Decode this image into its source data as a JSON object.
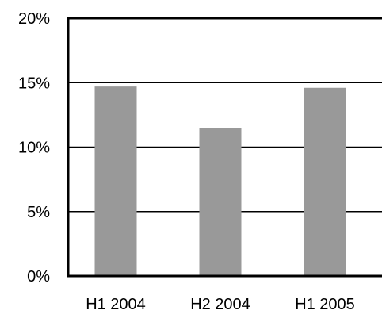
{
  "chart_data": {
    "type": "bar",
    "title": "",
    "xlabel": "",
    "ylabel": "",
    "categories": [
      "H1 2004",
      "H2 2004",
      "H1 2005"
    ],
    "values": [
      14.7,
      11.5,
      14.6
    ],
    "ylim": [
      0,
      20
    ],
    "yticks": [
      0,
      5,
      10,
      15,
      20
    ],
    "ytick_labels": [
      "0%",
      "5%",
      "10%",
      "15%",
      "20%"
    ],
    "grid": true,
    "legend": "none",
    "colors": {
      "bar": "#999999",
      "axis": "#000000",
      "grid": "#000000",
      "background": "#ffffff"
    }
  }
}
